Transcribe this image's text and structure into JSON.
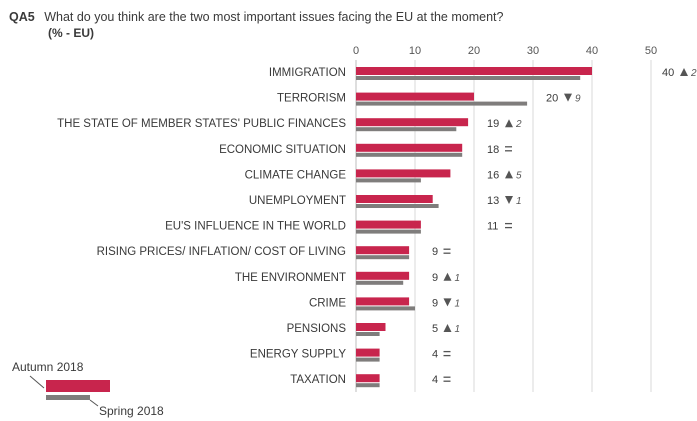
{
  "question": {
    "code": "QA5",
    "text": "What do you think are the two most important issues facing the EU at the moment?",
    "subtitle": "(% - EU)"
  },
  "colors": {
    "autumn": "#c8254d",
    "spring": "#7f7d7c",
    "grid": "#d9d9d9"
  },
  "legend": {
    "autumn_label": "Autumn 2018",
    "spring_label": "Spring 2018"
  },
  "chart_data": {
    "type": "bar",
    "orientation": "horizontal",
    "xlim": [
      0,
      50
    ],
    "xticks": [
      0,
      10,
      20,
      30,
      40,
      50
    ],
    "grid": true,
    "legend_position": "bottom-left",
    "categories": [
      "IMMIGRATION",
      "TERRORISM",
      "THE STATE OF MEMBER STATES' PUBLIC FINANCES",
      "ECONOMIC SITUATION",
      "CLIMATE CHANGE",
      "UNEMPLOYMENT",
      "EU'S INFLUENCE IN THE WORLD",
      "RISING PRICES/ INFLATION/ COST OF LIVING",
      "THE ENVIRONMENT",
      "CRIME",
      "PENSIONS",
      "ENERGY SUPPLY",
      "TAXATION"
    ],
    "series": [
      {
        "name": "Autumn 2018",
        "values": [
          40,
          20,
          19,
          18,
          16,
          13,
          11,
          9,
          9,
          9,
          5,
          4,
          4
        ]
      },
      {
        "name": "Spring 2018",
        "values": [
          38,
          29,
          17,
          18,
          11,
          14,
          11,
          9,
          8,
          10,
          4,
          4,
          4
        ]
      }
    ],
    "labels": [
      {
        "value": "40",
        "dir": "up",
        "change": "2"
      },
      {
        "value": "20",
        "dir": "down",
        "change": "9"
      },
      {
        "value": "19",
        "dir": "up",
        "change": "2"
      },
      {
        "value": "18",
        "dir": "eq",
        "change": ""
      },
      {
        "value": "16",
        "dir": "up",
        "change": "5"
      },
      {
        "value": "13",
        "dir": "down",
        "change": "1"
      },
      {
        "value": "11",
        "dir": "eq",
        "change": ""
      },
      {
        "value": "9",
        "dir": "eq",
        "change": ""
      },
      {
        "value": "9",
        "dir": "up",
        "change": "1"
      },
      {
        "value": "9",
        "dir": "down",
        "change": "1"
      },
      {
        "value": "5",
        "dir": "up",
        "change": "1"
      },
      {
        "value": "4",
        "dir": "eq",
        "change": ""
      },
      {
        "value": "4",
        "dir": "eq",
        "change": ""
      }
    ]
  }
}
